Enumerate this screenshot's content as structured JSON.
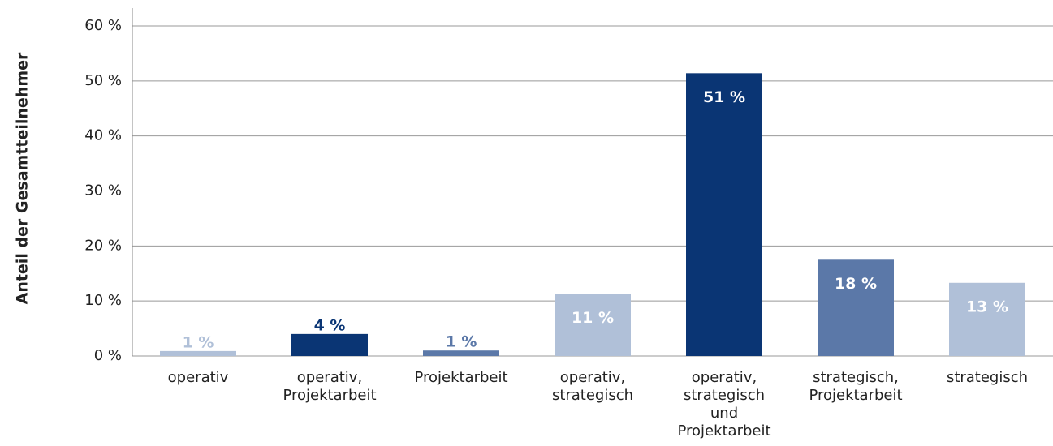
{
  "chart_data": {
    "type": "bar",
    "y_label": "Anteil der Gesamtteilnehmer",
    "categories": [
      [
        "operativ"
      ],
      [
        "operativ,",
        "Projektarbeit"
      ],
      [
        "Projektarbeit"
      ],
      [
        "operativ,",
        "strategisch"
      ],
      [
        "operativ,",
        "strategisch",
        "und",
        "Projektarbeit"
      ],
      [
        "strategisch,",
        "Projektarbeit"
      ],
      [
        "strategisch"
      ]
    ],
    "values": [
      0.9,
      4,
      1,
      11.3,
      51.4,
      17.5,
      13.3
    ],
    "value_labels": [
      "1 %",
      "4 %",
      "1 %",
      "11 %",
      "51 %",
      "18 %",
      "13 %"
    ],
    "colors": [
      "#b0c0d8",
      "#0a3574",
      "#5b78a8",
      "#b0c0d8",
      "#0a3574",
      "#5b78a8",
      "#b0c0d8"
    ],
    "ylim": [
      0,
      60
    ],
    "yticks": [
      {
        "value": 0,
        "label": "0 %"
      },
      {
        "value": 10,
        "label": "10 %"
      },
      {
        "value": 20,
        "label": "20 %"
      },
      {
        "value": 30,
        "label": "30 %"
      },
      {
        "value": 40,
        "label": "40 %"
      },
      {
        "value": 50,
        "label": "50 %"
      },
      {
        "value": 60,
        "label": "60 %"
      }
    ],
    "grid": true
  }
}
